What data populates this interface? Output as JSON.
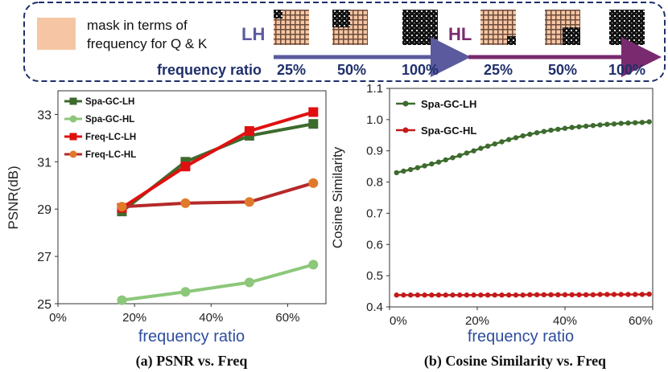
{
  "header": {
    "legend_text_line1": "mask in terms of",
    "legend_text_line2": "frequency for Q & K",
    "swatch_color": "#f6c6a4",
    "lh_label": "LH",
    "hl_label": "HL",
    "freq_ratio_label": "frequency ratio",
    "lh_ratios": [
      "25%",
      "50%",
      "100%"
    ],
    "hl_ratios": [
      "25%",
      "50%",
      "100%"
    ],
    "lh_color": "#5b5a9e",
    "hl_color": "#7a2a6e",
    "text_color": "#1f2f6b"
  },
  "chart_data": [
    {
      "type": "line",
      "title": "(a) PSNR vs. Freq",
      "xlabel": "frequency ratio",
      "ylabel": "PSNR(dB)",
      "xlim": [
        0,
        70
      ],
      "ylim": [
        25,
        34
      ],
      "xticks": [
        "0%",
        "20%",
        "40%",
        "60%"
      ],
      "yticks": [
        "25",
        "27",
        "29",
        "31",
        "33"
      ],
      "x": [
        16.7,
        33.3,
        50,
        66.7
      ],
      "series": [
        {
          "name": "Spa-GC-LH",
          "values": [
            28.9,
            31.0,
            32.1,
            32.6
          ],
          "color": "#3d6b2e",
          "marker": "square"
        },
        {
          "name": "Spa-GC-HL",
          "values": [
            25.15,
            25.5,
            25.9,
            26.65
          ],
          "color": "#8cc77a",
          "marker": "circle"
        },
        {
          "name": "Freq-LC-LH",
          "values": [
            29.05,
            30.8,
            32.3,
            33.1
          ],
          "color": "#e01010",
          "marker": "square"
        },
        {
          "name": "Freq-LC-HL",
          "values": [
            29.1,
            29.25,
            29.3,
            30.1
          ],
          "color": "#b52a2a",
          "marker": "circle",
          "marker_color": "#e07a2a"
        }
      ]
    },
    {
      "type": "line",
      "title": "(b) Cosine Similarity vs. Freq",
      "xlabel": "frequency ratio",
      "ylabel": "Cosine Similarity",
      "xlim": [
        0,
        60
      ],
      "ylim": [
        0.4,
        1.1
      ],
      "xticks": [
        "0%",
        "20%",
        "40%",
        "60%"
      ],
      "yticks": [
        "0.4",
        "0.5",
        "0.6",
        "0.7",
        "0.8",
        "0.9",
        "1.0",
        "1.1"
      ],
      "series": [
        {
          "name": "Spa-GC-LH",
          "color": "#3d6b2e",
          "x": [
            1.6,
            3.2,
            4.8,
            6.4,
            8.0,
            9.6,
            11.2,
            12.8,
            14.4,
            16.0,
            17.6,
            19.2,
            20.8,
            22.4,
            24.0,
            25.6,
            27.2,
            28.8,
            30.4,
            32.0,
            33.6,
            35.2,
            36.8,
            38.4,
            40.0,
            41.6,
            43.2,
            44.8,
            46.4,
            48.0,
            49.6,
            51.2,
            52.8,
            54.4,
            56.0,
            57.6,
            59.2
          ],
          "values": [
            0.83,
            0.835,
            0.84,
            0.846,
            0.852,
            0.858,
            0.864,
            0.871,
            0.878,
            0.885,
            0.893,
            0.9,
            0.908,
            0.915,
            0.922,
            0.929,
            0.936,
            0.942,
            0.948,
            0.953,
            0.958,
            0.962,
            0.966,
            0.969,
            0.972,
            0.975,
            0.977,
            0.979,
            0.981,
            0.983,
            0.985,
            0.986,
            0.988,
            0.989,
            0.99,
            0.991,
            0.993
          ]
        },
        {
          "name": "Spa-GC-HL",
          "color": "#c41a1a",
          "x": [
            1.6,
            3.2,
            4.8,
            6.4,
            8.0,
            9.6,
            11.2,
            12.8,
            14.4,
            16.0,
            17.6,
            19.2,
            20.8,
            22.4,
            24.0,
            25.6,
            27.2,
            28.8,
            30.4,
            32.0,
            33.6,
            35.2,
            36.8,
            38.4,
            40.0,
            41.6,
            43.2,
            44.8,
            46.4,
            48.0,
            49.6,
            51.2,
            52.8,
            54.4,
            56.0,
            57.6,
            59.2
          ],
          "values": [
            0.438,
            0.438,
            0.438,
            0.438,
            0.438,
            0.438,
            0.438,
            0.438,
            0.438,
            0.438,
            0.438,
            0.438,
            0.438,
            0.438,
            0.438,
            0.438,
            0.438,
            0.438,
            0.438,
            0.439,
            0.439,
            0.439,
            0.439,
            0.439,
            0.439,
            0.439,
            0.439,
            0.439,
            0.439,
            0.44,
            0.44,
            0.44,
            0.44,
            0.44,
            0.44,
            0.44,
            0.441
          ]
        }
      ]
    }
  ]
}
